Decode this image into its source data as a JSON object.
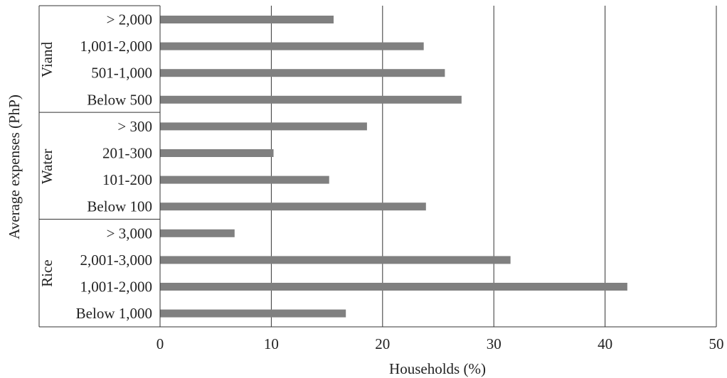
{
  "chart_data": {
    "type": "bar",
    "orientation": "horizontal",
    "xlabel": "Households (%)",
    "ylabel": "Average expenses (PhP)",
    "xlim": [
      0,
      50
    ],
    "xticks": [
      0,
      10,
      20,
      30,
      40,
      50
    ],
    "grid": "vertical",
    "bar_color": "#808080",
    "groups": [
      {
        "name": "Viand",
        "categories": [
          "> 2,000",
          "1,001-2,000",
          "501-1,000",
          "Below 500"
        ],
        "values": [
          15.6,
          23.7,
          25.6,
          27.1
        ]
      },
      {
        "name": "Water",
        "categories": [
          "> 300",
          "201-300",
          "101-200",
          "Below 100"
        ],
        "values": [
          18.6,
          10.2,
          15.2,
          23.9
        ]
      },
      {
        "name": "Rice",
        "categories": [
          "> 3,000",
          "2,001-3,000",
          "1,001-2,000",
          "Below 1,000"
        ],
        "values": [
          6.7,
          31.5,
          42.0,
          16.7
        ]
      }
    ]
  }
}
